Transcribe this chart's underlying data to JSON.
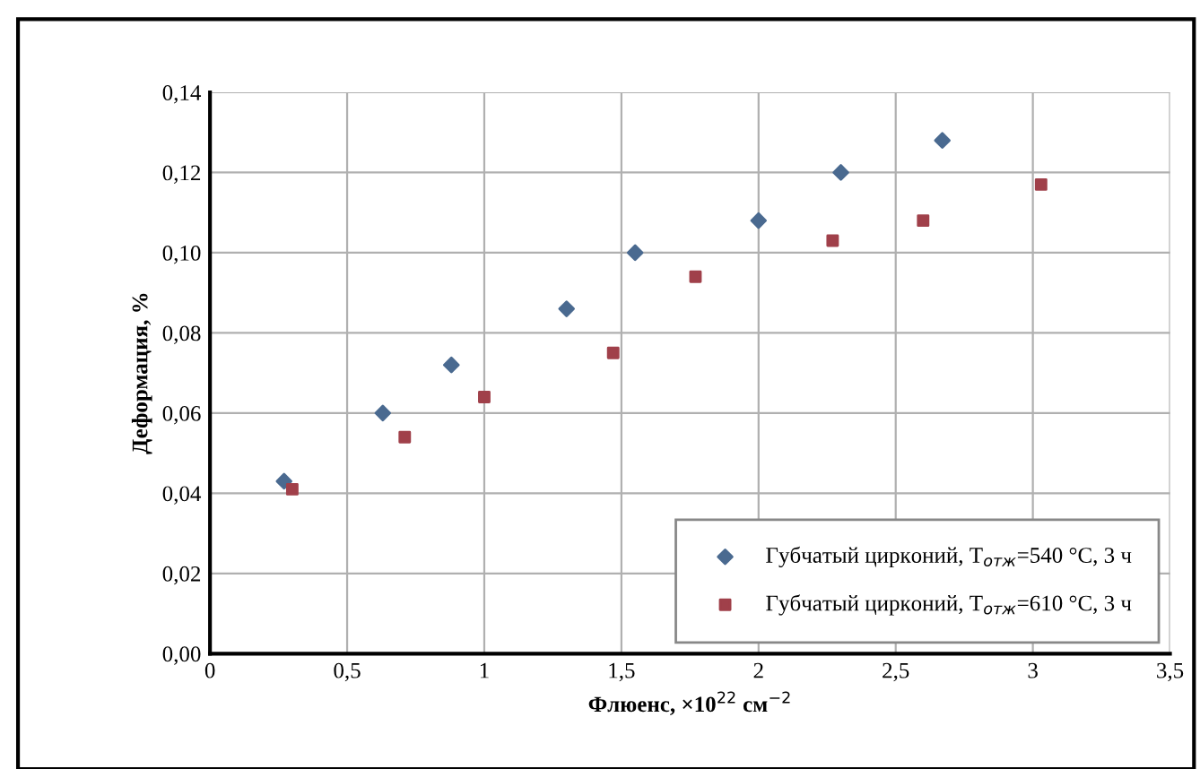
{
  "chart_data": {
    "type": "scatter",
    "xlabel": "Флюенс, ×10$^{22}$ см$^{−2}$",
    "ylabel": "Деформация, %",
    "xlim": [
      0,
      3.5
    ],
    "xticks": [
      {
        "value": 0,
        "label": "0"
      },
      {
        "value": 0.5,
        "label": "0,5"
      },
      {
        "value": 1,
        "label": "1"
      },
      {
        "value": 1.5,
        "label": "1,5"
      },
      {
        "value": 2,
        "label": "2"
      },
      {
        "value": 2.5,
        "label": "2,5"
      },
      {
        "value": 3,
        "label": "3"
      },
      {
        "value": 3.5,
        "label": "3,5"
      }
    ],
    "ylim": [
      0,
      0.14
    ],
    "yticks": [
      {
        "value": 0,
        "label": "0,00"
      },
      {
        "value": 0.02,
        "label": "0,02"
      },
      {
        "value": 0.04,
        "label": "0,04"
      },
      {
        "value": 0.06,
        "label": "0,06"
      },
      {
        "value": 0.08,
        "label": "0,08"
      },
      {
        "value": 0.1,
        "label": "0,10"
      },
      {
        "value": 0.12,
        "label": "0,12"
      },
      {
        "value": 0.14,
        "label": "0,14"
      }
    ],
    "grid": true,
    "legend": "bottom right",
    "series": [
      {
        "name": "Губчатый цирконий, T$_{отж}$=540 °C, 3 ч",
        "color": "#4a6a90",
        "marker": "diamond",
        "x": [
          0.27,
          0.63,
          0.88,
          1.3,
          1.55,
          2.0,
          2.3,
          2.67
        ],
        "values": [
          0.043,
          0.06,
          0.072,
          0.086,
          0.1,
          0.108,
          0.12,
          0.128
        ]
      },
      {
        "name": "Губчатый цирконий, T$_{отж}$=610 °C, 3 ч",
        "color": "#a0404a",
        "marker": "square",
        "x": [
          0.3,
          0.71,
          1.0,
          1.47,
          1.77,
          2.27,
          2.6,
          3.03
        ],
        "values": [
          0.041,
          0.054,
          0.064,
          0.075,
          0.094,
          0.103,
          0.108,
          0.117
        ]
      }
    ]
  }
}
